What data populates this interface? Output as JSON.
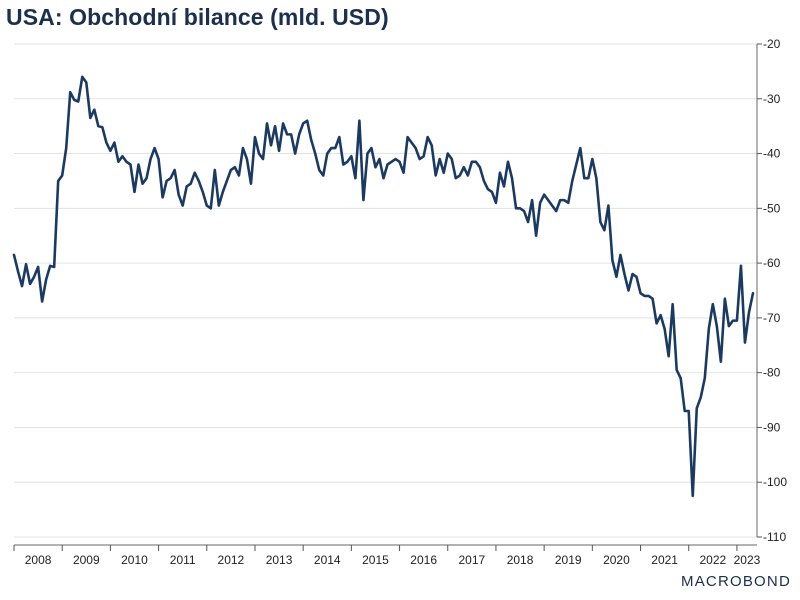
{
  "title": "USA: Obchodní bilance (mld. USD)",
  "logo": "MACROBOND",
  "colors": {
    "line": "#1b3a63",
    "title": "#1b2f4f",
    "grid": "#e3e3e3"
  },
  "chart_data": {
    "type": "line",
    "title": "USA: Obchodní bilance (mld. USD)",
    "xlabel": "",
    "ylabel": "",
    "ylim": [
      -110,
      -20
    ],
    "yticks": [
      -20,
      -30,
      -40,
      -50,
      -60,
      -70,
      -80,
      -90,
      -100,
      -110
    ],
    "y_axis_position": "right",
    "grid": "horizontal",
    "x_tick_labels": [
      "2008",
      "2009",
      "2010",
      "2011",
      "2012",
      "2013",
      "2014",
      "2015",
      "2016",
      "2017",
      "2018",
      "2019",
      "2020",
      "2021",
      "2022",
      "2023"
    ],
    "x_start_year": 2008,
    "series": [
      {
        "name": "",
        "values": [
          -58.5,
          -61.5,
          -64.2,
          -60.2,
          -63.8,
          -62.5,
          -60.7,
          -67.0,
          -63.0,
          -60.5,
          -60.7,
          -45.0,
          -44.0,
          -39.0,
          -28.8,
          -30.2,
          -30.5,
          -26.0,
          -27.0,
          -33.5,
          -32.0,
          -35.0,
          -35.2,
          -38.0,
          -39.5,
          -38.0,
          -41.5,
          -40.5,
          -41.5,
          -42.0,
          -47.0,
          -42.0,
          -45.5,
          -44.5,
          -41.0,
          -39.0,
          -41.0,
          -48.0,
          -45.0,
          -44.5,
          -43.0,
          -47.5,
          -49.5,
          -46.0,
          -45.5,
          -43.5,
          -45.0,
          -47.0,
          -49.5,
          -50.0,
          -43.0,
          -49.5,
          -47.0,
          -45.0,
          -43.0,
          -42.5,
          -44.0,
          -39.0,
          -41.0,
          -45.5,
          -37.0,
          -40.0,
          -41.0,
          -34.5,
          -38.5,
          -35.0,
          -39.5,
          -34.5,
          -36.5,
          -36.5,
          -40.0,
          -36.5,
          -34.5,
          -34.0,
          -37.5,
          -40.0,
          -43.0,
          -44.0,
          -40.0,
          -39.0,
          -39.0,
          -37.0,
          -42.0,
          -41.5,
          -40.5,
          -44.5,
          -34.0,
          -48.5,
          -40.0,
          -39.0,
          -42.5,
          -41.0,
          -44.5,
          -42.0,
          -41.5,
          -41.0,
          -41.5,
          -43.5,
          -37.0,
          -38.0,
          -39.0,
          -41.0,
          -40.5,
          -37.0,
          -38.5,
          -44.0,
          -41.0,
          -43.5,
          -40.0,
          -41.0,
          -44.5,
          -44.0,
          -42.5,
          -44.0,
          -41.5,
          -41.5,
          -42.5,
          -45.0,
          -46.5,
          -47.0,
          -49.0,
          -43.5,
          -46.0,
          -41.5,
          -44.5,
          -50.0,
          -50.0,
          -50.5,
          -52.5,
          -48.5,
          -55.0,
          -49.0,
          -47.5,
          -48.5,
          -49.5,
          -50.5,
          -48.5,
          -48.5,
          -49.0,
          -45.0,
          -42.0,
          -39.0,
          -44.5,
          -44.5,
          -41.0,
          -44.5,
          -52.5,
          -54.0,
          -49.5,
          -59.5,
          -62.5,
          -58.5,
          -62.0,
          -65.0,
          -62.0,
          -62.5,
          -65.5,
          -66.0,
          -66.0,
          -66.5,
          -71.0,
          -69.5,
          -72.0,
          -77.0,
          -67.5,
          -79.5,
          -81.0,
          -87.0,
          -87.0,
          -102.5,
          -86.5,
          -84.5,
          -81.0,
          -72.0,
          -67.5,
          -71.5,
          -78.0,
          -66.5,
          -71.5,
          -70.5,
          -70.5,
          -60.5,
          -74.5,
          -69.0,
          -65.5
        ]
      }
    ]
  }
}
